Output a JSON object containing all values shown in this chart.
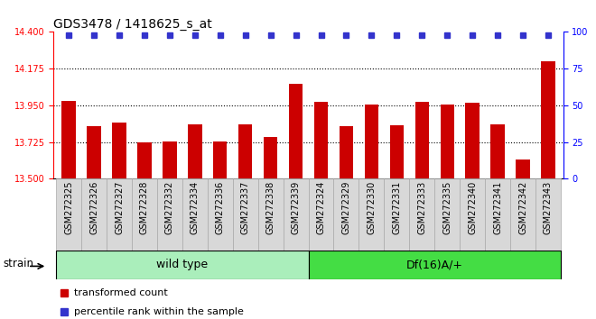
{
  "title": "GDS3478 / 1418625_s_at",
  "categories": [
    "GSM272325",
    "GSM272326",
    "GSM272327",
    "GSM272328",
    "GSM272332",
    "GSM272334",
    "GSM272336",
    "GSM272337",
    "GSM272338",
    "GSM272339",
    "GSM272324",
    "GSM272329",
    "GSM272330",
    "GSM272331",
    "GSM272333",
    "GSM272335",
    "GSM272340",
    "GSM272341",
    "GSM272342",
    "GSM272343"
  ],
  "bar_values": [
    13.975,
    13.82,
    13.845,
    13.72,
    13.73,
    13.835,
    13.73,
    13.835,
    13.755,
    14.08,
    13.97,
    13.82,
    13.955,
    13.83,
    13.97,
    13.955,
    13.965,
    13.835,
    13.62,
    14.22
  ],
  "group1_label": "wild type",
  "group1_count": 10,
  "group2_label": "Df(16)A/+",
  "group2_count": 10,
  "strain_label": "strain",
  "bar_color": "#cc0000",
  "percentile_color": "#3333cc",
  "ylim_left": [
    13.5,
    14.4
  ],
  "ylim_right": [
    0,
    100
  ],
  "yticks_left": [
    13.5,
    13.725,
    13.95,
    14.175,
    14.4
  ],
  "yticks_right": [
    0,
    25,
    50,
    75,
    100
  ],
  "hlines": [
    13.725,
    13.95,
    14.175
  ],
  "background_color": "#ffffff",
  "group1_bg": "#aaeebb",
  "group2_bg": "#44dd44",
  "tick_bg": "#d8d8d8",
  "legend_entries": [
    "transformed count",
    "percentile rank within the sample"
  ],
  "title_fontsize": 10,
  "tick_fontsize": 7,
  "bar_width": 0.55
}
